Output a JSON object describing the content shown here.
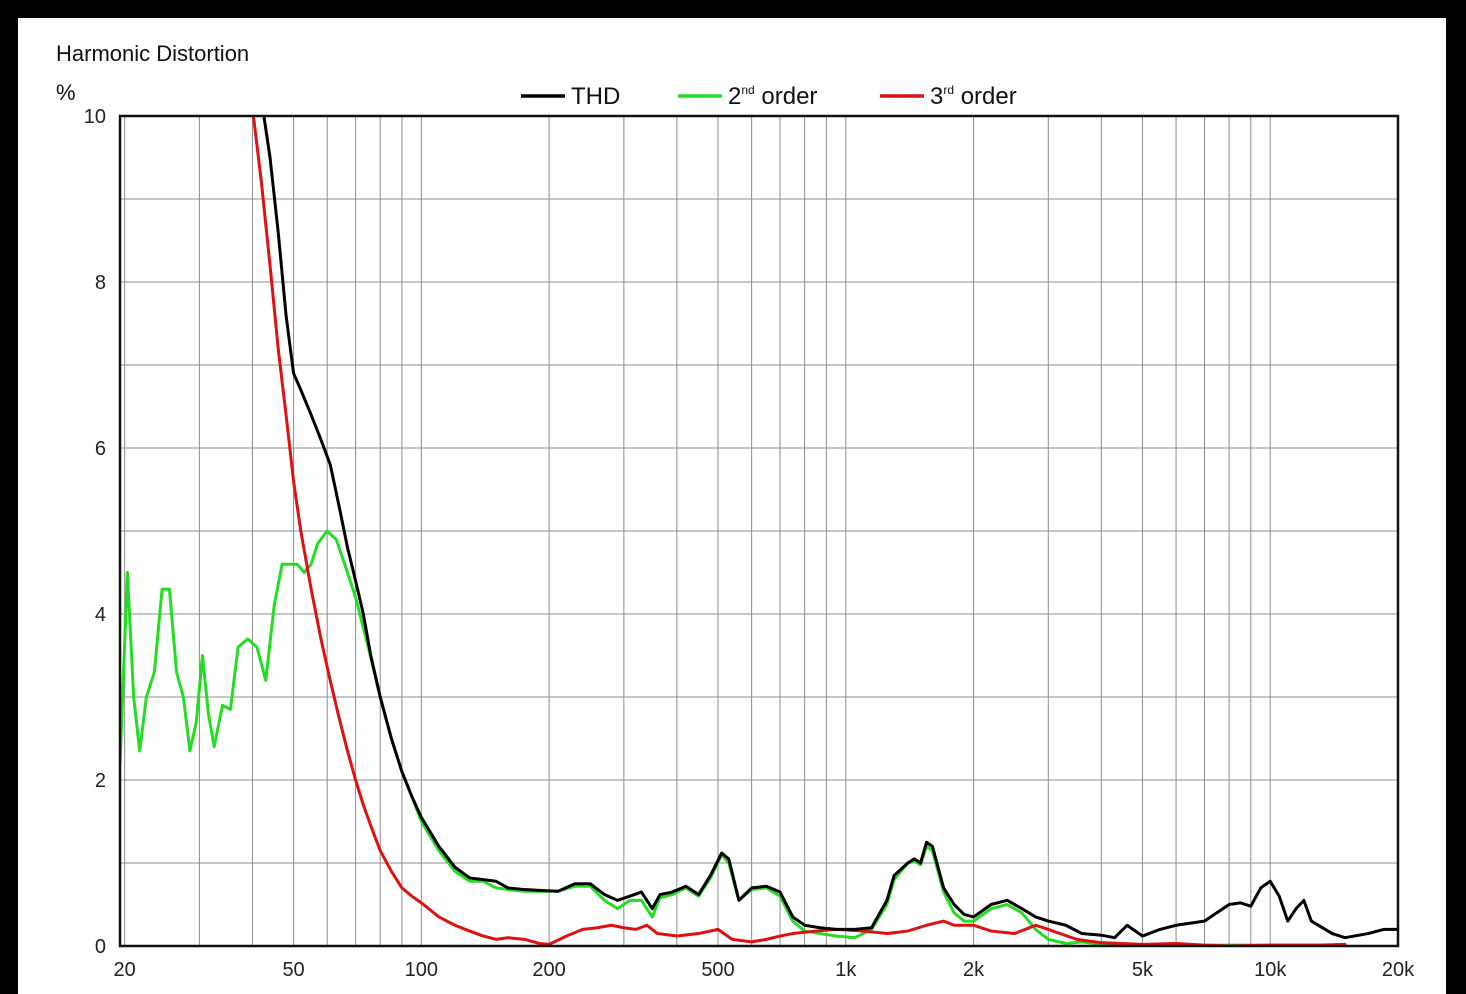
{
  "chart_data": {
    "type": "line",
    "title": "Harmonic Distortion",
    "ylabel": "%",
    "xlabel": "",
    "x_scale": "log",
    "xlim": [
      19.5,
      20000
    ],
    "ylim": [
      0,
      10
    ],
    "grid": true,
    "legend_position": "top-center",
    "x_ticks": [
      {
        "value": 20,
        "label": "20"
      },
      {
        "value": 50,
        "label": "50"
      },
      {
        "value": 100,
        "label": "100"
      },
      {
        "value": 200,
        "label": "200"
      },
      {
        "value": 500,
        "label": "500"
      },
      {
        "value": 1000,
        "label": "1k"
      },
      {
        "value": 2000,
        "label": "2k"
      },
      {
        "value": 5000,
        "label": "5k"
      },
      {
        "value": 10000,
        "label": "10k"
      },
      {
        "value": 20000,
        "label": "20k"
      }
    ],
    "y_ticks": [
      {
        "value": 0,
        "label": "0"
      },
      {
        "value": 2,
        "label": "2"
      },
      {
        "value": 4,
        "label": "4"
      },
      {
        "value": 6,
        "label": "6"
      },
      {
        "value": 8,
        "label": "8"
      },
      {
        "value": 10,
        "label": "10"
      }
    ],
    "series": [
      {
        "name": "THD",
        "legend_base": "THD",
        "legend_sup": "",
        "legend_rest": "",
        "color": "#000000",
        "points": [
          [
            42,
            10.2
          ],
          [
            44,
            9.5
          ],
          [
            46,
            8.6
          ],
          [
            48,
            7.6
          ],
          [
            50,
            6.9
          ],
          [
            52,
            6.7
          ],
          [
            55,
            6.4
          ],
          [
            58,
            6.1
          ],
          [
            61,
            5.8
          ],
          [
            64,
            5.3
          ],
          [
            67,
            4.8
          ],
          [
            70,
            4.4
          ],
          [
            73,
            4.0
          ],
          [
            76,
            3.5
          ],
          [
            80,
            3.0
          ],
          [
            85,
            2.5
          ],
          [
            90,
            2.1
          ],
          [
            95,
            1.8
          ],
          [
            100,
            1.55
          ],
          [
            110,
            1.2
          ],
          [
            120,
            0.95
          ],
          [
            130,
            0.82
          ],
          [
            140,
            0.8
          ],
          [
            150,
            0.78
          ],
          [
            160,
            0.7
          ],
          [
            175,
            0.68
          ],
          [
            190,
            0.67
          ],
          [
            210,
            0.66
          ],
          [
            230,
            0.75
          ],
          [
            250,
            0.75
          ],
          [
            270,
            0.62
          ],
          [
            290,
            0.55
          ],
          [
            310,
            0.6
          ],
          [
            330,
            0.65
          ],
          [
            350,
            0.45
          ],
          [
            365,
            0.62
          ],
          [
            390,
            0.65
          ],
          [
            420,
            0.72
          ],
          [
            450,
            0.62
          ],
          [
            480,
            0.85
          ],
          [
            510,
            1.12
          ],
          [
            530,
            1.05
          ],
          [
            560,
            0.55
          ],
          [
            600,
            0.7
          ],
          [
            650,
            0.72
          ],
          [
            700,
            0.65
          ],
          [
            750,
            0.35
          ],
          [
            800,
            0.25
          ],
          [
            870,
            0.22
          ],
          [
            950,
            0.2
          ],
          [
            1050,
            0.2
          ],
          [
            1150,
            0.22
          ],
          [
            1250,
            0.55
          ],
          [
            1300,
            0.85
          ],
          [
            1400,
            1.0
          ],
          [
            1450,
            1.05
          ],
          [
            1500,
            1.0
          ],
          [
            1550,
            1.25
          ],
          [
            1600,
            1.2
          ],
          [
            1700,
            0.7
          ],
          [
            1800,
            0.5
          ],
          [
            1900,
            0.38
          ],
          [
            2000,
            0.35
          ],
          [
            2200,
            0.5
          ],
          [
            2400,
            0.55
          ],
          [
            2600,
            0.45
          ],
          [
            2800,
            0.35
          ],
          [
            3000,
            0.3
          ],
          [
            3300,
            0.25
          ],
          [
            3600,
            0.15
          ],
          [
            4000,
            0.13
          ],
          [
            4300,
            0.1
          ],
          [
            4600,
            0.25
          ],
          [
            5000,
            0.12
          ],
          [
            5500,
            0.2
          ],
          [
            6000,
            0.25
          ],
          [
            7000,
            0.3
          ],
          [
            8000,
            0.5
          ],
          [
            8500,
            0.52
          ],
          [
            9000,
            0.48
          ],
          [
            9500,
            0.7
          ],
          [
            10000,
            0.78
          ],
          [
            10500,
            0.6
          ],
          [
            11000,
            0.3
          ],
          [
            11500,
            0.45
          ],
          [
            12000,
            0.55
          ],
          [
            12500,
            0.3
          ],
          [
            14000,
            0.15
          ],
          [
            15000,
            0.1
          ],
          [
            17000,
            0.15
          ],
          [
            18500,
            0.2
          ],
          [
            20000,
            0.2
          ]
        ]
      },
      {
        "name": "2nd order",
        "legend_base": "2",
        "legend_sup": "nd",
        "legend_rest": " order",
        "color": "#22dd22",
        "points": [
          [
            19.5,
            2.2
          ],
          [
            20.3,
            4.5
          ],
          [
            21,
            3.0
          ],
          [
            21.7,
            2.35
          ],
          [
            22.5,
            3.0
          ],
          [
            23.5,
            3.3
          ],
          [
            24.5,
            4.3
          ],
          [
            25.5,
            4.3
          ],
          [
            26.5,
            3.3
          ],
          [
            27.5,
            3.0
          ],
          [
            28.5,
            2.35
          ],
          [
            29.5,
            2.7
          ],
          [
            30.5,
            3.5
          ],
          [
            31.5,
            2.8
          ],
          [
            32.5,
            2.4
          ],
          [
            34,
            2.9
          ],
          [
            35.5,
            2.85
          ],
          [
            37,
            3.6
          ],
          [
            39,
            3.7
          ],
          [
            41,
            3.6
          ],
          [
            43,
            3.2
          ],
          [
            45,
            4.1
          ],
          [
            47,
            4.6
          ],
          [
            49,
            4.6
          ],
          [
            51,
            4.6
          ],
          [
            53,
            4.5
          ],
          [
            55,
            4.6
          ],
          [
            57,
            4.85
          ],
          [
            60,
            5.0
          ],
          [
            63,
            4.9
          ],
          [
            66,
            4.6
          ],
          [
            70,
            4.2
          ],
          [
            75,
            3.6
          ],
          [
            80,
            3.0
          ],
          [
            85,
            2.5
          ],
          [
            90,
            2.1
          ],
          [
            95,
            1.8
          ],
          [
            100,
            1.5
          ],
          [
            110,
            1.15
          ],
          [
            120,
            0.9
          ],
          [
            130,
            0.78
          ],
          [
            140,
            0.78
          ],
          [
            150,
            0.7
          ],
          [
            160,
            0.68
          ],
          [
            175,
            0.66
          ],
          [
            190,
            0.66
          ],
          [
            210,
            0.66
          ],
          [
            230,
            0.72
          ],
          [
            250,
            0.72
          ],
          [
            270,
            0.55
          ],
          [
            290,
            0.45
          ],
          [
            310,
            0.55
          ],
          [
            330,
            0.55
          ],
          [
            350,
            0.35
          ],
          [
            365,
            0.58
          ],
          [
            390,
            0.62
          ],
          [
            420,
            0.7
          ],
          [
            450,
            0.6
          ],
          [
            480,
            0.82
          ],
          [
            510,
            1.1
          ],
          [
            530,
            1.0
          ],
          [
            560,
            0.55
          ],
          [
            600,
            0.68
          ],
          [
            650,
            0.7
          ],
          [
            700,
            0.6
          ],
          [
            750,
            0.3
          ],
          [
            800,
            0.18
          ],
          [
            870,
            0.15
          ],
          [
            950,
            0.12
          ],
          [
            1050,
            0.1
          ],
          [
            1150,
            0.2
          ],
          [
            1250,
            0.5
          ],
          [
            1300,
            0.8
          ],
          [
            1400,
            1.0
          ],
          [
            1450,
            1.02
          ],
          [
            1500,
            0.98
          ],
          [
            1550,
            1.2
          ],
          [
            1600,
            1.15
          ],
          [
            1700,
            0.65
          ],
          [
            1800,
            0.4
          ],
          [
            1900,
            0.3
          ],
          [
            2000,
            0.3
          ],
          [
            2200,
            0.45
          ],
          [
            2400,
            0.5
          ],
          [
            2600,
            0.4
          ],
          [
            2800,
            0.2
          ],
          [
            3000,
            0.08
          ],
          [
            3300,
            0.03
          ],
          [
            3600,
            0.05
          ],
          [
            4000,
            0.02
          ],
          [
            4500,
            0.01
          ],
          [
            5000,
            0.01
          ],
          [
            6000,
            0.01
          ],
          [
            7000,
            0.01
          ],
          [
            8000,
            0.01
          ],
          [
            9000,
            0.01
          ],
          [
            10000,
            0.01
          ],
          [
            12000,
            0.01
          ],
          [
            15000,
            0.01
          ]
        ]
      },
      {
        "name": "3rd order",
        "legend_base": "3",
        "legend_sup": "rd",
        "legend_rest": " order",
        "color": "#dd1111",
        "points": [
          [
            40,
            10.1
          ],
          [
            42,
            9.2
          ],
          [
            44,
            8.2
          ],
          [
            46,
            7.2
          ],
          [
            48,
            6.4
          ],
          [
            50,
            5.6
          ],
          [
            52,
            5.0
          ],
          [
            55,
            4.3
          ],
          [
            58,
            3.7
          ],
          [
            61,
            3.2
          ],
          [
            64,
            2.75
          ],
          [
            67,
            2.35
          ],
          [
            70,
            2.0
          ],
          [
            73,
            1.7
          ],
          [
            76,
            1.45
          ],
          [
            80,
            1.15
          ],
          [
            85,
            0.9
          ],
          [
            90,
            0.7
          ],
          [
            95,
            0.6
          ],
          [
            100,
            0.52
          ],
          [
            110,
            0.35
          ],
          [
            120,
            0.25
          ],
          [
            130,
            0.18
          ],
          [
            140,
            0.12
          ],
          [
            150,
            0.08
          ],
          [
            160,
            0.1
          ],
          [
            175,
            0.08
          ],
          [
            190,
            0.03
          ],
          [
            200,
            0.02
          ],
          [
            220,
            0.12
          ],
          [
            240,
            0.2
          ],
          [
            260,
            0.22
          ],
          [
            280,
            0.25
          ],
          [
            300,
            0.22
          ],
          [
            320,
            0.2
          ],
          [
            340,
            0.25
          ],
          [
            360,
            0.15
          ],
          [
            400,
            0.12
          ],
          [
            450,
            0.15
          ],
          [
            500,
            0.2
          ],
          [
            540,
            0.08
          ],
          [
            600,
            0.05
          ],
          [
            650,
            0.08
          ],
          [
            700,
            0.12
          ],
          [
            750,
            0.15
          ],
          [
            850,
            0.18
          ],
          [
            950,
            0.2
          ],
          [
            1100,
            0.18
          ],
          [
            1250,
            0.15
          ],
          [
            1400,
            0.18
          ],
          [
            1550,
            0.25
          ],
          [
            1700,
            0.3
          ],
          [
            1800,
            0.25
          ],
          [
            2000,
            0.25
          ],
          [
            2200,
            0.18
          ],
          [
            2500,
            0.15
          ],
          [
            2800,
            0.25
          ],
          [
            3000,
            0.2
          ],
          [
            3500,
            0.08
          ],
          [
            4000,
            0.04
          ],
          [
            5000,
            0.02
          ],
          [
            6000,
            0.03
          ],
          [
            7000,
            0.01
          ],
          [
            8000,
            0.0
          ],
          [
            10000,
            0.01
          ],
          [
            13000,
            0.01
          ],
          [
            15000,
            0.02
          ]
        ]
      }
    ]
  }
}
